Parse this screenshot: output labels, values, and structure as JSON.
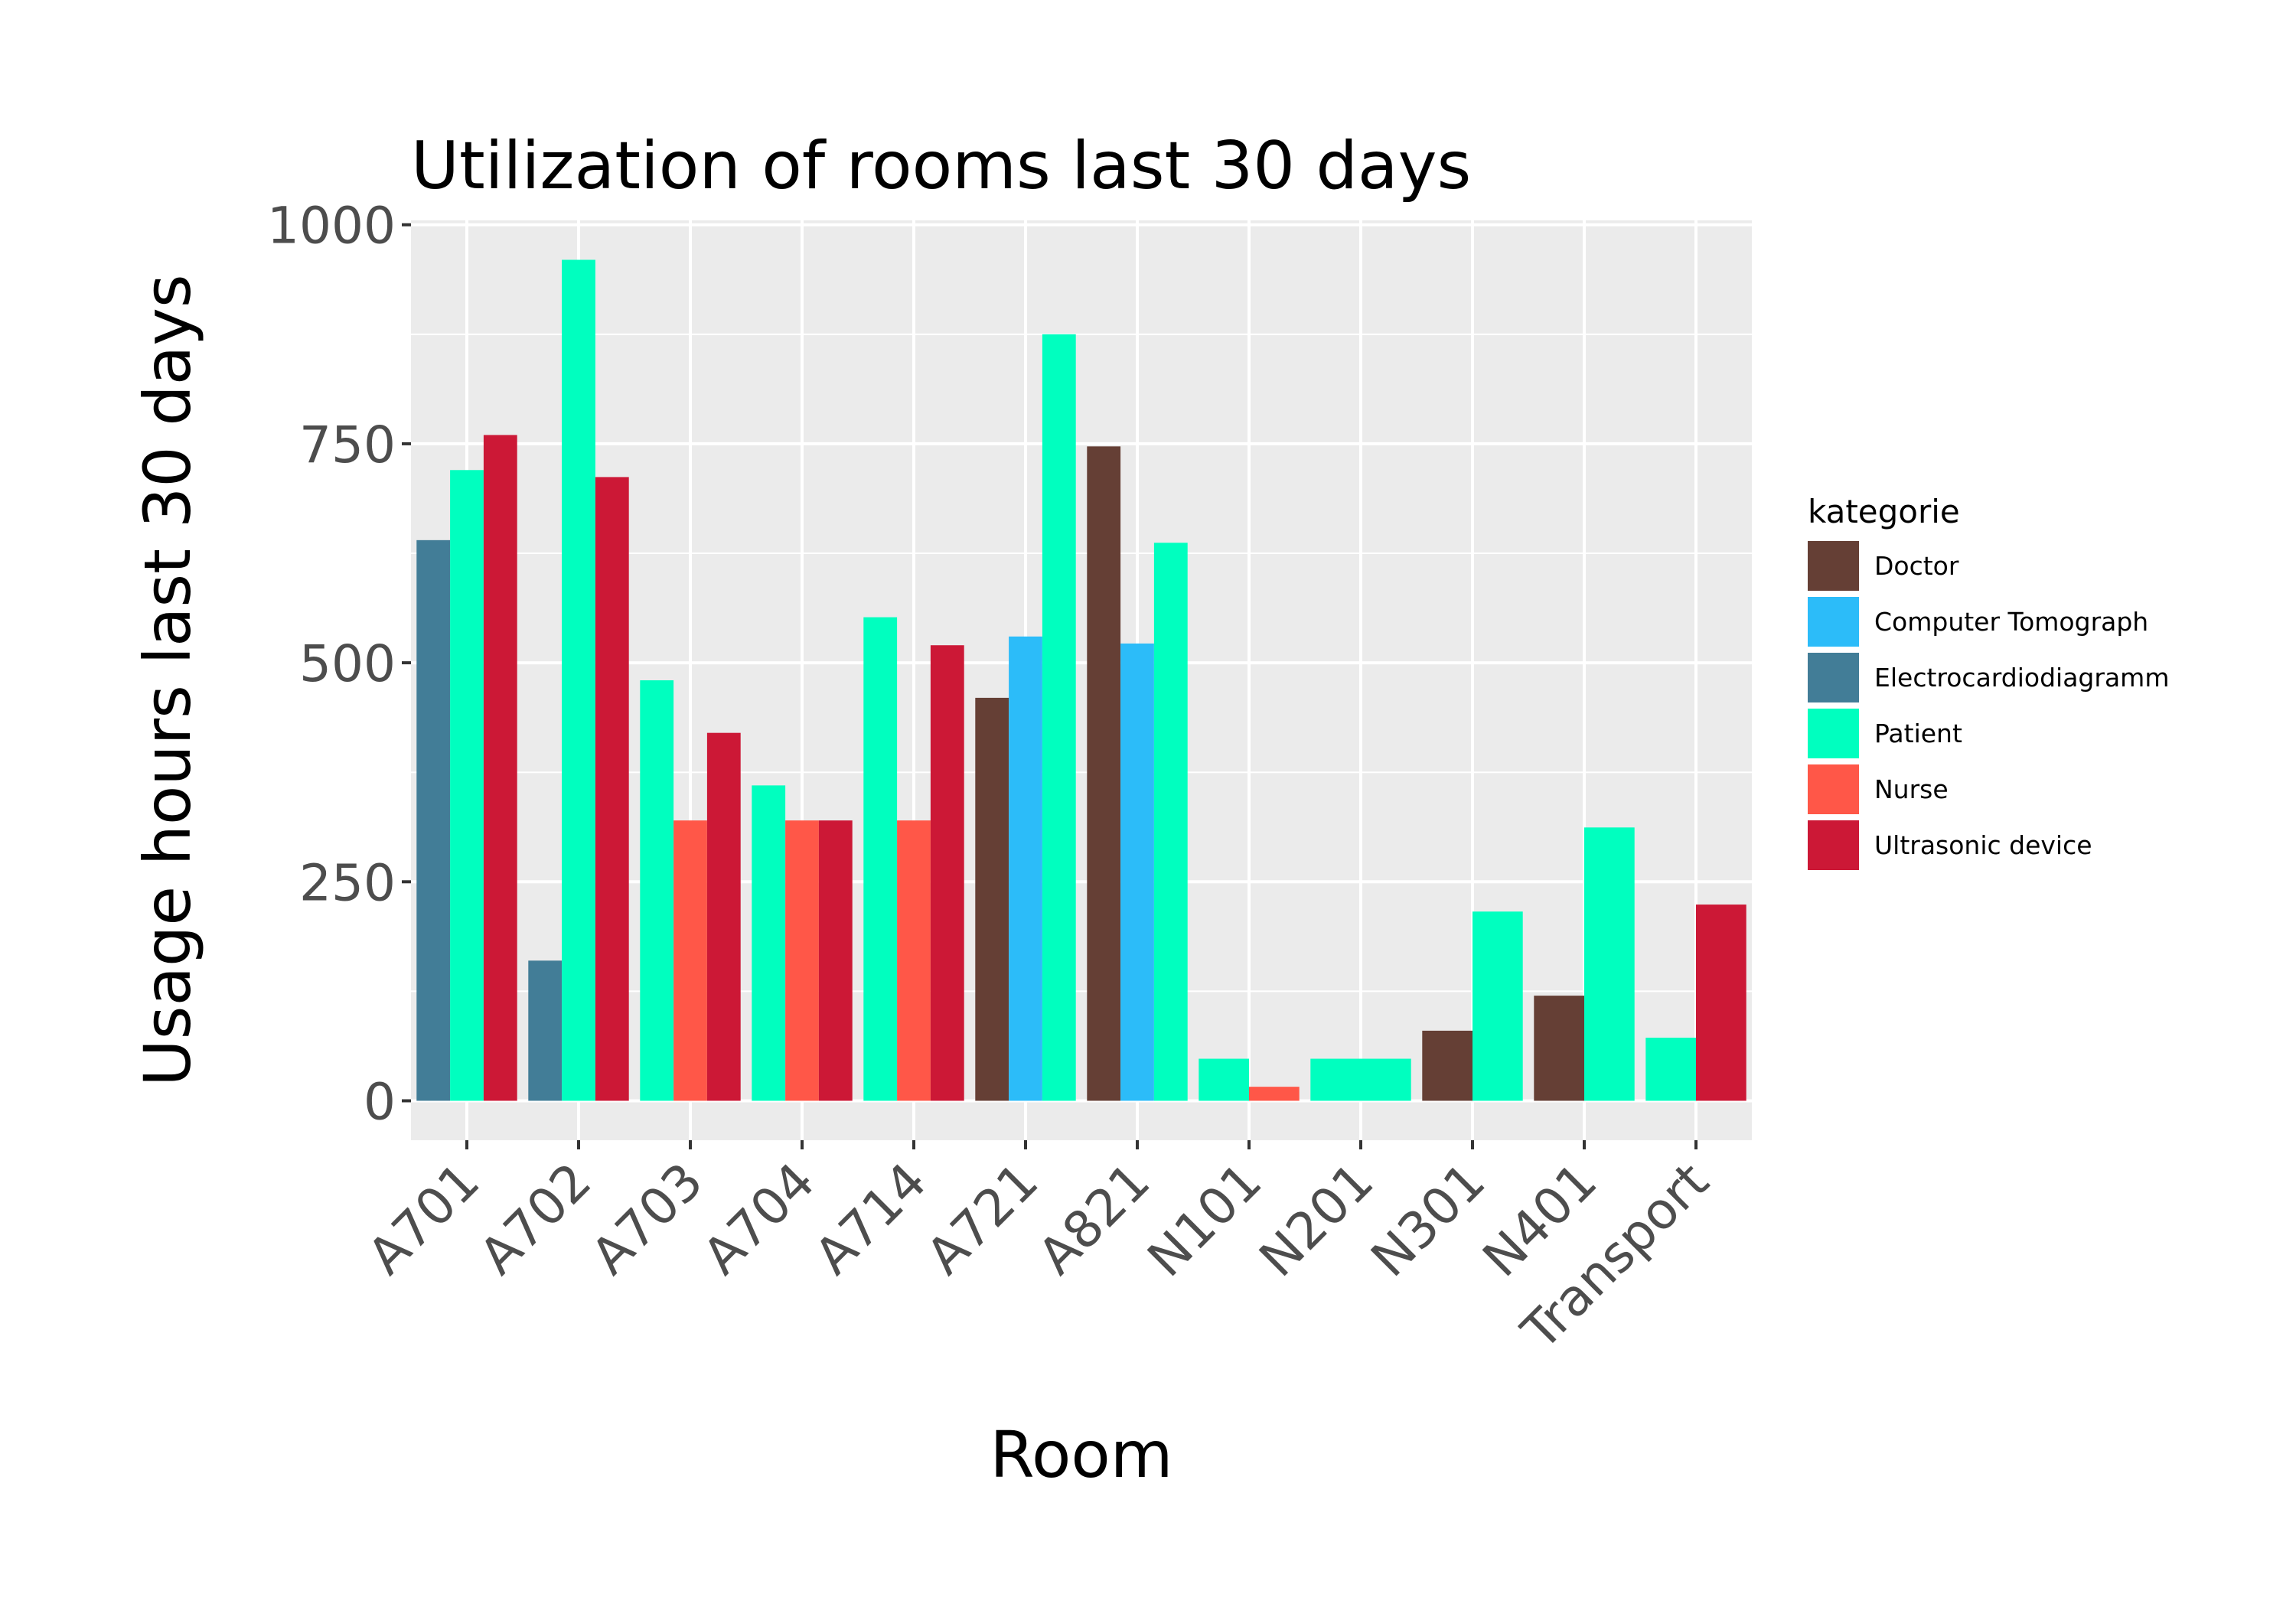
{
  "chart_data": {
    "type": "bar",
    "title": "Utilization of rooms last 30 days",
    "xlabel": "Room",
    "ylabel": "Usage hours last 30 days",
    "ylim": [
      -45,
      1005
    ],
    "yticks": [
      0,
      250,
      500,
      750,
      1000
    ],
    "ytick_labels": [
      "0",
      "250",
      "500",
      "750",
      "1000"
    ],
    "grid": true,
    "legend_title": "kategorie",
    "legend_position": "right",
    "categories": [
      "A701",
      "A702",
      "A703",
      "A704",
      "A714",
      "A721",
      "A821",
      "N101",
      "N201",
      "N301",
      "N401",
      "Transport"
    ],
    "series": [
      {
        "name": "Doctor",
        "color": "#653f35"
      },
      {
        "name": "Computer Tomograph",
        "color": "#2cbcf9"
      },
      {
        "name": "Electrocardiodiagramm",
        "color": "#427d97"
      },
      {
        "name": "Patient",
        "color": "#00ffbf"
      },
      {
        "name": "Nurse",
        "color": "#ff5748"
      },
      {
        "name": "Ultrasonic device",
        "color": "#cc1836"
      }
    ],
    "bars": [
      {
        "room": "A701",
        "groups": [
          {
            "category": "Electrocardiodiagramm",
            "value": 640
          },
          {
            "category": "Patient",
            "value": 720
          },
          {
            "category": "Ultrasonic device",
            "value": 760
          }
        ]
      },
      {
        "room": "A702",
        "groups": [
          {
            "category": "Electrocardiodiagramm",
            "value": 160
          },
          {
            "category": "Patient",
            "value": 960
          },
          {
            "category": "Ultrasonic device",
            "value": 712
          }
        ]
      },
      {
        "room": "A703",
        "groups": [
          {
            "category": "Patient",
            "value": 480
          },
          {
            "category": "Nurse",
            "value": 320
          },
          {
            "category": "Ultrasonic device",
            "value": 420
          }
        ]
      },
      {
        "room": "A704",
        "groups": [
          {
            "category": "Patient",
            "value": 360
          },
          {
            "category": "Nurse",
            "value": 320
          },
          {
            "category": "Ultrasonic device",
            "value": 320
          }
        ]
      },
      {
        "room": "A714",
        "groups": [
          {
            "category": "Patient",
            "value": 552
          },
          {
            "category": "Nurse",
            "value": 320
          },
          {
            "category": "Ultrasonic device",
            "value": 520
          }
        ]
      },
      {
        "room": "A721",
        "groups": [
          {
            "category": "Doctor",
            "value": 460
          },
          {
            "category": "Computer Tomograph",
            "value": 530
          },
          {
            "category": "Patient",
            "value": 875
          }
        ]
      },
      {
        "room": "A821",
        "groups": [
          {
            "category": "Doctor",
            "value": 747
          },
          {
            "category": "Computer Tomograph",
            "value": 522
          },
          {
            "category": "Patient",
            "value": 637
          }
        ]
      },
      {
        "room": "N101",
        "groups": [
          {
            "category": "Patient",
            "value": 48
          },
          {
            "category": "Nurse",
            "value": 16
          }
        ]
      },
      {
        "room": "N201",
        "groups": [
          {
            "category": "Patient",
            "value": 48
          }
        ]
      },
      {
        "room": "N301",
        "groups": [
          {
            "category": "Doctor",
            "value": 80
          },
          {
            "category": "Patient",
            "value": 216
          }
        ]
      },
      {
        "room": "N401",
        "groups": [
          {
            "category": "Doctor",
            "value": 120
          },
          {
            "category": "Patient",
            "value": 312
          }
        ]
      },
      {
        "room": "Transport",
        "groups": [
          {
            "category": "Patient",
            "value": 72
          },
          {
            "category": "Ultrasonic device",
            "value": 224
          }
        ]
      }
    ]
  }
}
